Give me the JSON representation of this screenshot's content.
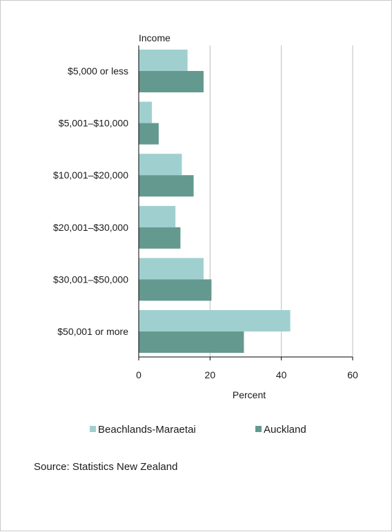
{
  "chart_data": {
    "type": "bar",
    "orientation": "horizontal",
    "y_axis_title": "Income",
    "xlabel": "Percent",
    "xlim": [
      0,
      60
    ],
    "x_ticks": [
      "0",
      "20",
      "40",
      "60"
    ],
    "grid": true,
    "legend_position": "bottom",
    "categories": [
      "$5,000 or less",
      "$5,001–$10,000",
      "$10,001–$20,000",
      "$20,001–$30,000",
      "$30,001–$50,000",
      "$50,001 or more"
    ],
    "series": [
      {
        "name": "Beachlands-Maraetai",
        "color": "#9fd0cf",
        "values": [
          13.7,
          3.7,
          12.1,
          10.3,
          18.2,
          42.5
        ]
      },
      {
        "name": "Auckland",
        "color": "#64998f",
        "values": [
          18.2,
          5.6,
          15.4,
          11.7,
          20.4,
          29.5
        ]
      }
    ]
  },
  "footer": {
    "source": "Source: Statistics New Zealand"
  }
}
